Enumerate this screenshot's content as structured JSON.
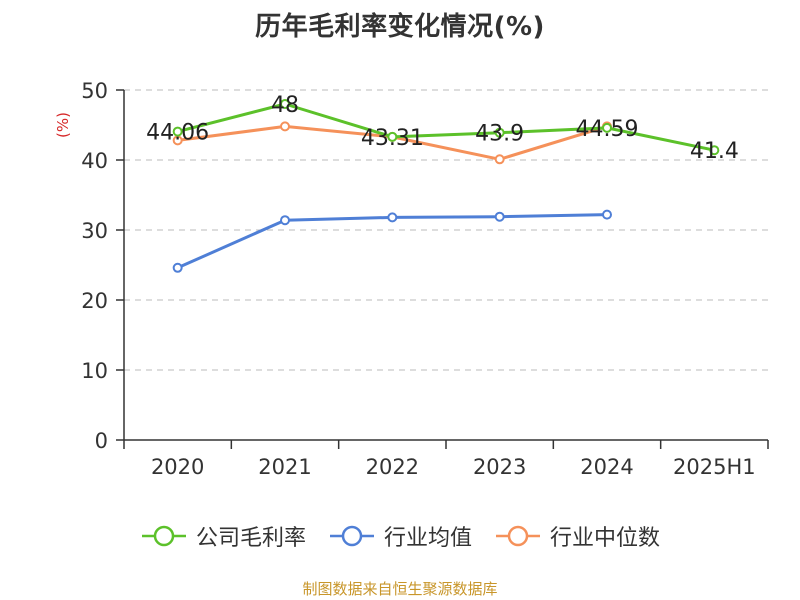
{
  "header": {
    "title": "历年毛利率变化情况(%)"
  },
  "footer": {
    "source": "制图数据来自恒生聚源数据库"
  },
  "chart_data": {
    "type": "line",
    "title": "历年毛利率变化情况(%)",
    "ylabel": "(%)",
    "xlabel": "",
    "categories": [
      "2020",
      "2021",
      "2022",
      "2023",
      "2024",
      "2025H1"
    ],
    "ylim": [
      0,
      50
    ],
    "yticks": [
      0,
      10,
      20,
      30,
      40,
      50
    ],
    "grid": "horizontal dashed",
    "legend_position": "bottom",
    "series": [
      {
        "name": "公司毛利率",
        "color": "#5cc12a",
        "values": [
          44.06,
          48,
          43.31,
          43.9,
          44.59,
          41.4
        ],
        "labels": [
          "44.06",
          "48",
          "43.31",
          "43.9",
          "44.59",
          "41.4"
        ]
      },
      {
        "name": "行业均值",
        "color": "#4f7fd6",
        "values": [
          24.6,
          31.4,
          31.8,
          31.9,
          32.2,
          null
        ]
      },
      {
        "name": "行业中位数",
        "color": "#f5915a",
        "values": [
          42.8,
          44.8,
          43.3,
          40.1,
          44.8,
          null
        ]
      }
    ]
  }
}
